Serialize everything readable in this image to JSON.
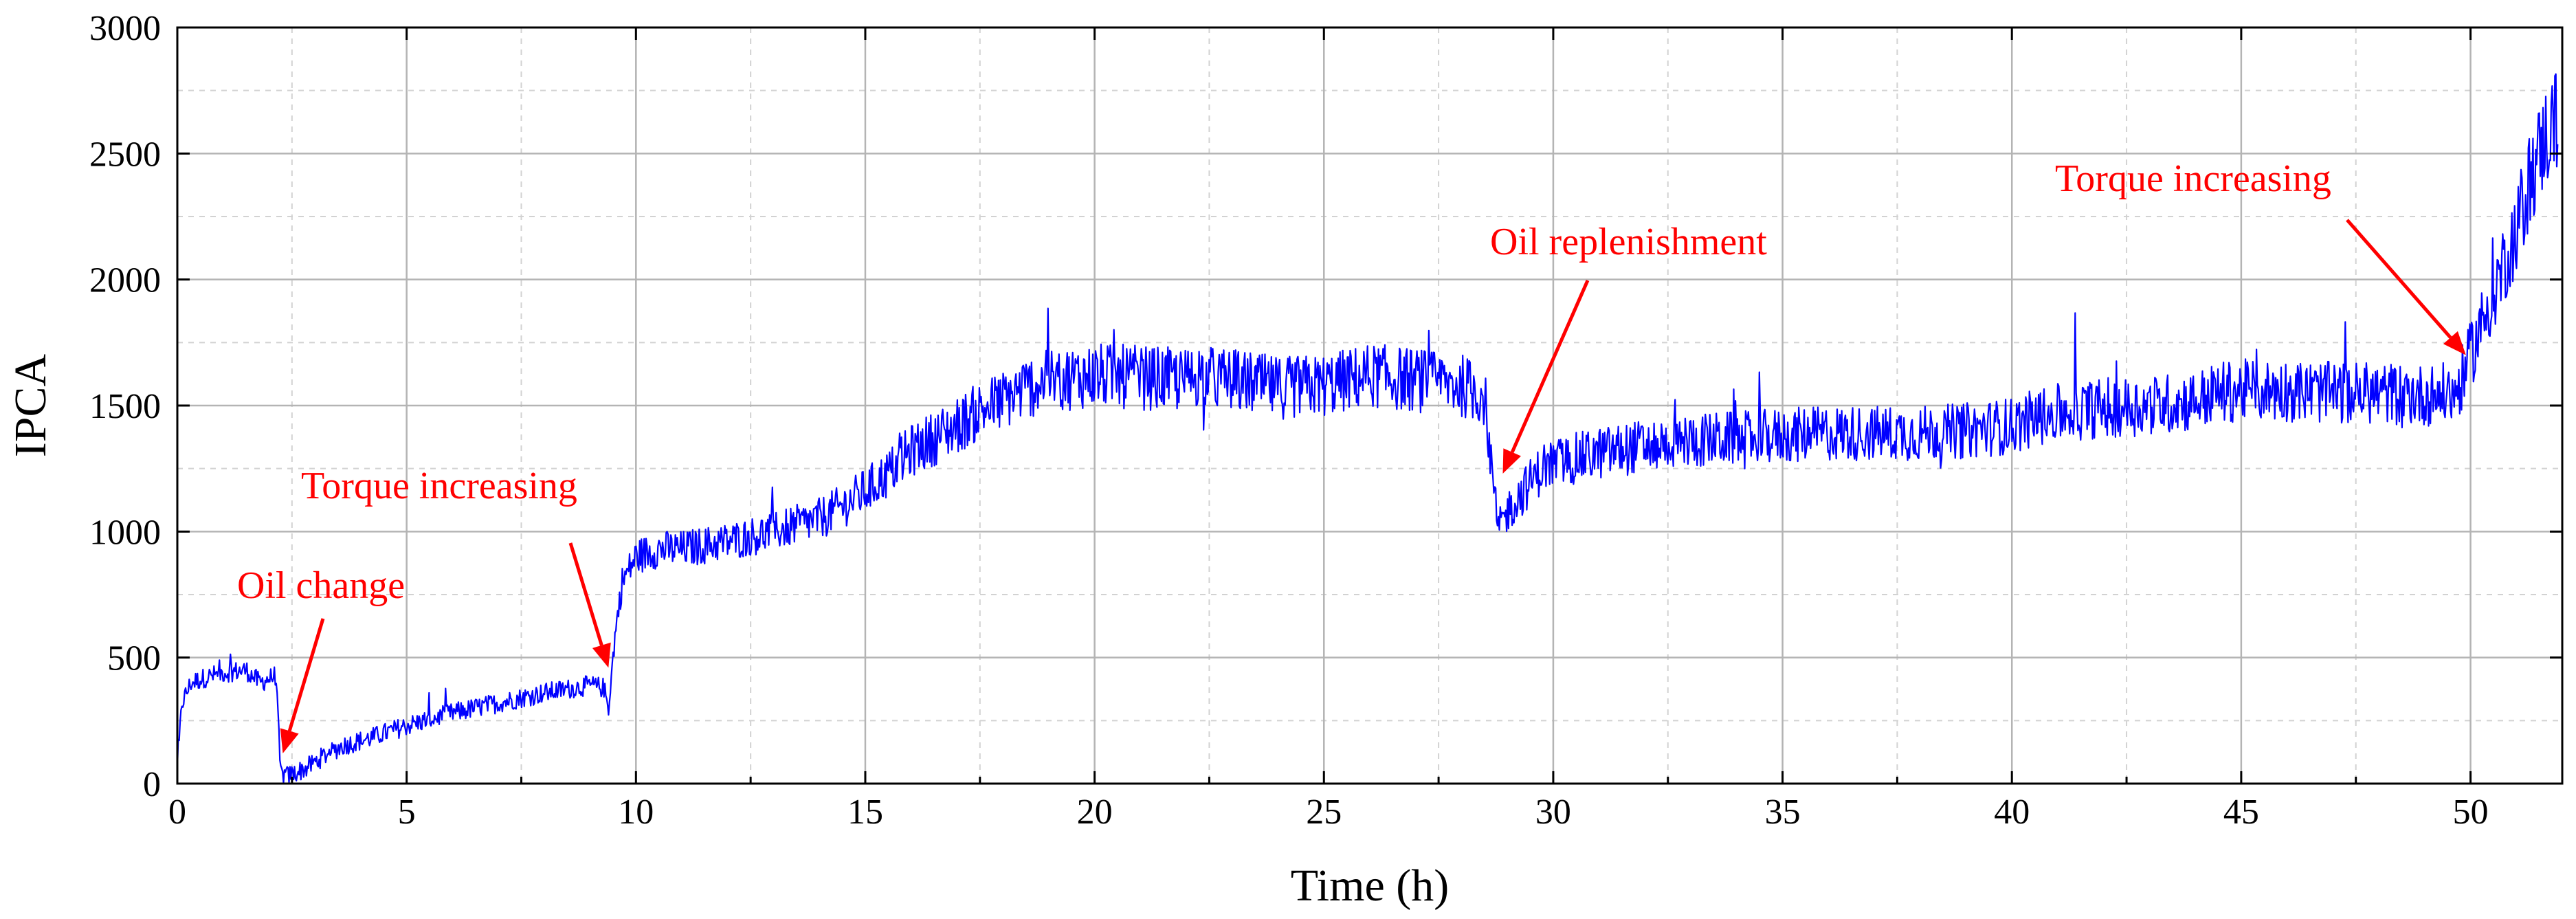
{
  "chart_data": {
    "type": "line",
    "title": "",
    "xlabel": "Time (h)",
    "ylabel": "IPCA",
    "xlim": [
      0,
      52
    ],
    "ylim": [
      0,
      3000
    ],
    "x_ticks": [
      0,
      5,
      10,
      15,
      20,
      25,
      30,
      35,
      40,
      45,
      50
    ],
    "y_ticks": [
      0,
      500,
      1000,
      1500,
      2000,
      2500,
      3000
    ],
    "x_tick_labels": [
      "0",
      "5",
      "10",
      "15",
      "20",
      "25",
      "30",
      "35",
      "40",
      "45",
      "50"
    ],
    "y_tick_labels": [
      "0",
      "500",
      "1000",
      "1500",
      "2000",
      "2500",
      "3000"
    ],
    "grid": true,
    "series": [
      {
        "name": "IPCA",
        "color": "#0000ff",
        "x": [
          0.0,
          0.1,
          0.3,
          0.6,
          1.0,
          1.5,
          1.8,
          2.15,
          2.25,
          2.4,
          2.8,
          3.2,
          3.6,
          4.2,
          5.0,
          6.0,
          7.0,
          8.0,
          9.0,
          9.3,
          9.4,
          9.55,
          9.7,
          10.0,
          10.5,
          11.0,
          12.0,
          13.0,
          14.0,
          14.5,
          15.0,
          15.5,
          16.0,
          17.0,
          17.5,
          18.0,
          18.5,
          19.0,
          19.5,
          20.0,
          21.0,
          22.0,
          22.3,
          22.5,
          23.0,
          24.0,
          25.0,
          26.0,
          27.0,
          28.0,
          28.5,
          28.8,
          29.0,
          29.3,
          29.8,
          30.5,
          31.0,
          32.0,
          33.0,
          34.0,
          35.0,
          36.0,
          37.0,
          38.0,
          39.0,
          40.0,
          40.5,
          41.0,
          41.2,
          41.5,
          42.0,
          43.0,
          44.0,
          44.5,
          45.0,
          46.0,
          47.0,
          48.0,
          49.0,
          49.7,
          50.0,
          50.3,
          50.6,
          51.0,
          51.3,
          51.6,
          51.9
        ],
        "values": [
          50,
          320,
          400,
          420,
          440,
          450,
          400,
          430,
          40,
          30,
          60,
          110,
          150,
          180,
          230,
          280,
          320,
          360,
          390,
          380,
          300,
          600,
          800,
          900,
          930,
          930,
          960,
          1000,
          1050,
          1100,
          1160,
          1230,
          1320,
          1420,
          1480,
          1520,
          1570,
          1600,
          1610,
          1620,
          1610,
          1600,
          1630,
          1610,
          1600,
          1570,
          1580,
          1620,
          1600,
          1580,
          1540,
          1000,
          1080,
          1150,
          1260,
          1290,
          1310,
          1340,
          1360,
          1370,
          1380,
          1390,
          1390,
          1390,
          1400,
          1420,
          1450,
          1470,
          1470,
          1480,
          1490,
          1500,
          1520,
          1550,
          1560,
          1560,
          1550,
          1550,
          1540,
          1550,
          1700,
          1850,
          2000,
          2200,
          2400,
          2550,
          2650
        ]
      }
    ],
    "annotations": [
      {
        "text": "Oil change",
        "target": [
          2.3,
          120
        ]
      },
      {
        "text": "Torque increasing",
        "target": [
          9.4,
          460
        ]
      },
      {
        "text": "Oil replenishment",
        "target": [
          28.9,
          1230
        ]
      },
      {
        "text": "Torque increasing",
        "target": [
          49.9,
          1700
        ]
      }
    ]
  }
}
